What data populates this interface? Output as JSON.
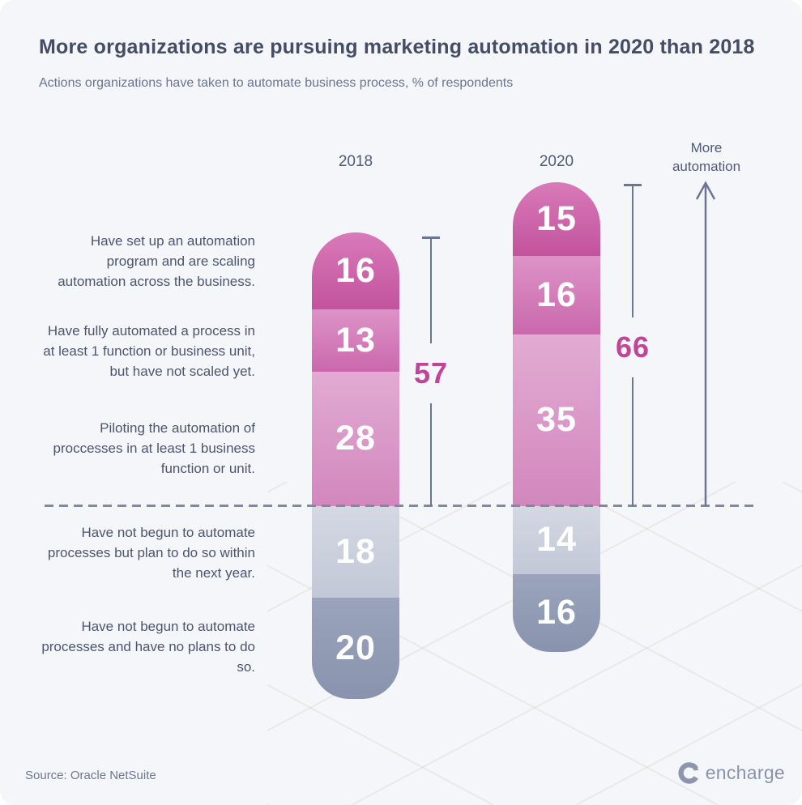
{
  "title": "More organizations are pursuing marketing automation in 2020 than 2018",
  "subtitle": "Actions organizations have taken to automate business process, % of respondents",
  "annotations": {
    "more_automation_lines": [
      "More",
      "automation"
    ]
  },
  "source": "Source: Oracle NetSuite",
  "brand": "encharge",
  "chart_data": {
    "type": "bar",
    "stacked": true,
    "unit": "% of respondents",
    "legend_position": "none",
    "grid": false,
    "columns": [
      {
        "label": "2018",
        "values": [
          16,
          13,
          28,
          18,
          20
        ],
        "total_automated": 57
      },
      {
        "label": "2020",
        "values": [
          15,
          16,
          35,
          14,
          16
        ],
        "total_automated": 66
      }
    ],
    "categories": [
      {
        "group": "automated",
        "lines": [
          "Have set up an automation",
          "program and are scaling",
          "automation across the business."
        ]
      },
      {
        "group": "automated",
        "lines": [
          "Have fully automated a process in",
          "at least 1 function or business unit,",
          "but have not scaled yet."
        ]
      },
      {
        "group": "automated",
        "lines": [
          "Piloting the automation of",
          "proccesses in at least 1 business",
          "function or unit."
        ]
      },
      {
        "group": "not_automated",
        "lines": [
          "Have not begun to automate",
          "processes but plan to do so within",
          "the next year."
        ]
      },
      {
        "group": "not_automated",
        "lines": [
          "Have not begun to automate",
          "processes and have no plans to do",
          "so."
        ]
      }
    ],
    "segment_colors": [
      {
        "from": "#d97ab9",
        "to": "#c2539c"
      },
      {
        "from": "#dd93c7",
        "to": "#ca68ac"
      },
      {
        "from": "#e2abd3",
        "to": "#d287bd"
      },
      {
        "from": "#d4d8e3",
        "to": "#c2c8d7"
      },
      {
        "from": "#9ba4bc",
        "to": "#8993ad"
      }
    ],
    "accent_color": "#c24397",
    "line_color": "#6b7695",
    "dash_color": "#7e89a4",
    "divider_meaning": "dashed line separates organizations that automated vs not begun"
  }
}
